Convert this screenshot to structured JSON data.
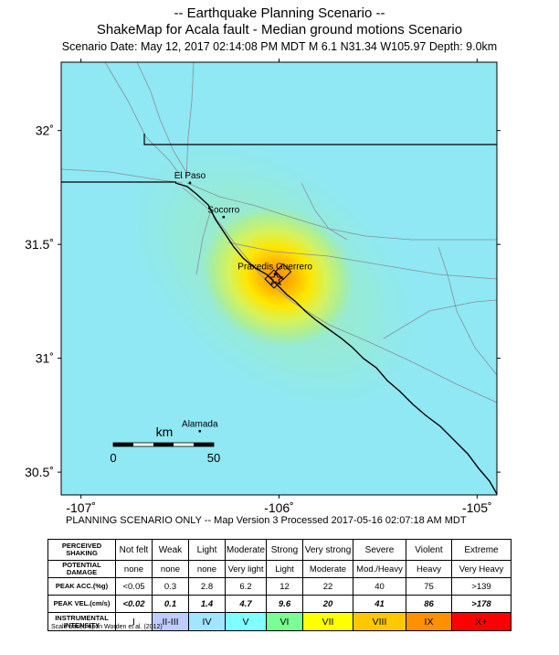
{
  "header": {
    "line1": "-- Earthquake Planning Scenario --",
    "line2": "ShakeMap for Acala fault - Median ground motions Scenario",
    "line3": "Scenario Date: May 12, 2017 02:14:08 PM MDT   M 6.1   N31.34 W105.97   Depth: 9.0km"
  },
  "map": {
    "lat_ticks": [
      "32˚",
      "31.5˚",
      "31˚",
      "30.5˚"
    ],
    "lon_ticks": [
      "-107˚",
      "-106˚",
      "-105˚"
    ],
    "lon_range": [
      -107.1,
      -104.9
    ],
    "lat_range": [
      30.4,
      32.3
    ],
    "places": [
      {
        "name": "El Paso",
        "lon": -106.45,
        "lat": 31.77
      },
      {
        "name": "Socorro",
        "lon": -106.28,
        "lat": 31.62
      },
      {
        "name": "Praxedis Guerrero",
        "lon": -106.02,
        "lat": 31.37
      },
      {
        "name": "Alamada",
        "lon": -106.4,
        "lat": 30.68
      }
    ],
    "epicenter": {
      "lon": -105.97,
      "lat": 31.34
    },
    "scale_bar": {
      "unit_label": "km",
      "start": "0",
      "end": "50"
    },
    "colors": {
      "background": "#8fe8f4",
      "border": "#000000"
    }
  },
  "footer": "PLANNING SCENARIO ONLY -- Map Version 3 Processed 2017-05-16 02:07:18 AM MDT",
  "legend": {
    "rows": [
      {
        "label": [
          "PERCEIVED",
          "SHAKING"
        ],
        "values": [
          "Not felt",
          "Weak",
          "Light",
          "Moderate",
          "Strong",
          "Very strong",
          "Severe",
          "Violent",
          "Extreme"
        ]
      },
      {
        "label": [
          "POTENTIAL",
          "DAMAGE"
        ],
        "values": [
          "none",
          "none",
          "none",
          "Very light",
          "Light",
          "Moderate",
          "Mod./Heavy",
          "Heavy",
          "Very Heavy"
        ]
      },
      {
        "label": [
          "PEAK ACC.(%g)"
        ],
        "values": [
          "<0.05",
          "0.3",
          "2.8",
          "6.2",
          "12",
          "22",
          "40",
          "75",
          ">139"
        ]
      },
      {
        "label": [
          "PEAK VEL.(cm/s)"
        ],
        "values": [
          "<0.02",
          "0.1",
          "1.4",
          "4.7",
          "9.6",
          "20",
          "41",
          "86",
          ">178"
        ]
      },
      {
        "label": [
          "INSTRUMENTAL",
          "INTENSITY"
        ],
        "values": [
          "I",
          "II-III",
          "IV",
          "V",
          "VI",
          "VII",
          "VIII",
          "IX",
          "X+"
        ]
      }
    ],
    "intensity_colors": [
      "#ffffff",
      "#bfccff",
      "#a0e6ff",
      "#80ffff",
      "#7aff93",
      "#ffff00",
      "#ffc800",
      "#ff9100",
      "#ff0000"
    ]
  },
  "scale_note": "Scale based upon Worden et al. (2012)"
}
